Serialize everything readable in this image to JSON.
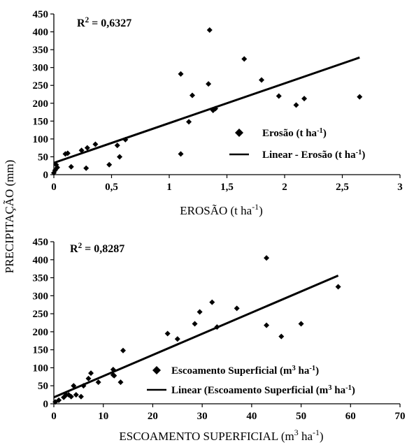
{
  "ylabel": "PRECIPITAÇÃO (mm)",
  "chart_data": [
    {
      "type": "scatter",
      "title": "",
      "xlabel": "EROSÃO (t ha⁻¹)",
      "ylabel": "PRECIPITAÇÃO (mm)",
      "r2_label": "R² = 0,6327",
      "xlim": [
        0,
        3
      ],
      "ylim": [
        0,
        450
      ],
      "xticks": [
        "0",
        "0,5",
        "1",
        "1,5",
        "2",
        "2,5",
        "3"
      ],
      "yticks": [
        "0",
        "50",
        "100",
        "150",
        "200",
        "250",
        "300",
        "350",
        "400",
        "450"
      ],
      "legend_position": "center-right",
      "series": [
        {
          "name": "Erosão (t ha⁻¹)",
          "marker": "diamond",
          "x": [
            0.0,
            0.01,
            0.02,
            0.03,
            0.1,
            0.12,
            0.15,
            0.24,
            0.28,
            0.29,
            0.36,
            0.48,
            0.55,
            0.57,
            0.62,
            1.1,
            1.1,
            1.17,
            1.2,
            1.34,
            1.35,
            1.38,
            1.4,
            1.65,
            1.8,
            1.95,
            2.1,
            2.17,
            2.65
          ],
          "y": [
            5,
            12,
            28,
            20,
            58,
            60,
            22,
            68,
            18,
            75,
            85,
            28,
            82,
            50,
            98,
            282,
            58,
            148,
            222,
            254,
            405,
            180,
            185,
            324,
            265,
            220,
            195,
            213,
            218
          ]
        }
      ],
      "trendline": {
        "name": "Linear - Erosão (t ha⁻¹)",
        "x": [
          0,
          2.65
        ],
        "y": [
          33,
          328
        ]
      }
    },
    {
      "type": "scatter",
      "title": "",
      "xlabel": "ESCOAMENTO SUPERFICIAL (m³ ha⁻¹)",
      "ylabel": "PRECIPITAÇÃO (mm)",
      "r2_label": "R² = 0,8287",
      "xlim": [
        0,
        70
      ],
      "ylim": [
        0,
        450
      ],
      "xticks": [
        "0",
        "10",
        "20",
        "30",
        "40",
        "50",
        "60",
        "70"
      ],
      "yticks": [
        "0",
        "50",
        "100",
        "150",
        "200",
        "250",
        "300",
        "350",
        "400",
        "450"
      ],
      "legend_position": "bottom-right",
      "series": [
        {
          "name": "Escoamento Superficial (m³ ha⁻¹)",
          "marker": "diamond",
          "x": [
            0.3,
            1,
            2,
            2.5,
            3,
            3.5,
            4,
            4.5,
            5.5,
            6,
            7,
            7.5,
            9,
            12,
            12,
            12.2,
            13.5,
            14,
            23,
            25,
            28.5,
            29.5,
            32,
            33,
            37,
            43,
            43,
            46,
            50,
            57.5
          ],
          "y": [
            5,
            10,
            18,
            25,
            25,
            20,
            50,
            25,
            20,
            50,
            70,
            85,
            60,
            80,
            95,
            78,
            60,
            148,
            195,
            180,
            222,
            255,
            282,
            213,
            265,
            405,
            218,
            187,
            222,
            325
          ]
        }
      ],
      "trendline": {
        "name": "Linear (Escoamento Superficial (m³ ha⁻¹)",
        "x": [
          0,
          57.5
        ],
        "y": [
          18,
          356
        ]
      }
    }
  ]
}
